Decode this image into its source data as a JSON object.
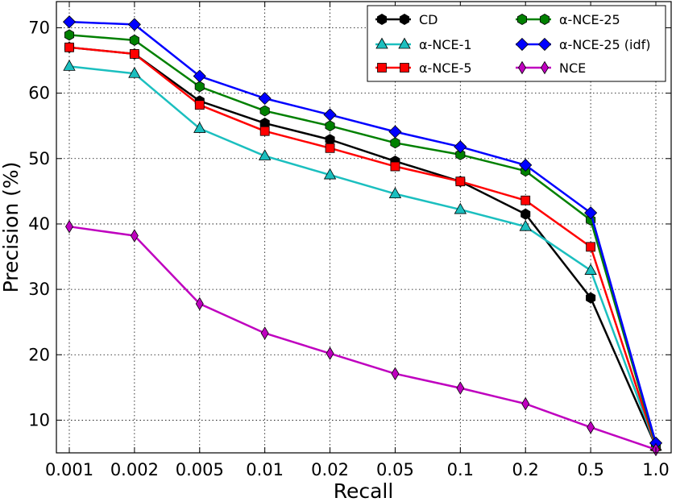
{
  "chart_data": {
    "type": "line",
    "xlabel": "Recall",
    "ylabel": "Precision (%)",
    "categories": [
      "0.001",
      "0.002",
      "0.005",
      "0.01",
      "0.02",
      "0.05",
      "0.1",
      "0.2",
      "0.5",
      "1.0"
    ],
    "ylim": [
      5,
      74
    ],
    "yticks": [
      10,
      20,
      30,
      40,
      50,
      60,
      70
    ],
    "grid": true,
    "legend_position": "top-right",
    "series": [
      {
        "name": "CD",
        "color": "#000000",
        "marker": "hexagon",
        "values": [
          67.0,
          66.0,
          58.8,
          55.4,
          52.9,
          49.6,
          46.5,
          41.5,
          28.7,
          6.0
        ]
      },
      {
        "name": "α-NCE-1",
        "color": "#1bbfbf",
        "marker": "triangle",
        "values": [
          64.1,
          63.0,
          54.6,
          50.4,
          47.5,
          44.6,
          42.2,
          39.6,
          32.9,
          6.0
        ]
      },
      {
        "name": "α-NCE-5",
        "color": "#ff0000",
        "marker": "square",
        "values": [
          67.0,
          66.0,
          58.2,
          54.2,
          51.6,
          48.8,
          46.5,
          43.6,
          36.5,
          6.0
        ]
      },
      {
        "name": "α-NCE-25",
        "color": "#008000",
        "marker": "hexagon",
        "values": [
          68.9,
          68.1,
          61.0,
          57.3,
          55.0,
          52.4,
          50.6,
          48.1,
          40.6,
          6.2
        ]
      },
      {
        "name": "α-NCE-25 (idf)",
        "color": "#0000ff",
        "marker": "diamond",
        "values": [
          70.9,
          70.5,
          62.6,
          59.2,
          56.7,
          54.1,
          51.8,
          49.0,
          41.7,
          6.5
        ]
      },
      {
        "name": "NCE",
        "color": "#bf00bf",
        "marker": "thin-diamond",
        "values": [
          39.6,
          38.2,
          27.8,
          23.3,
          20.2,
          17.1,
          14.9,
          12.5,
          8.9,
          5.5
        ]
      }
    ]
  }
}
